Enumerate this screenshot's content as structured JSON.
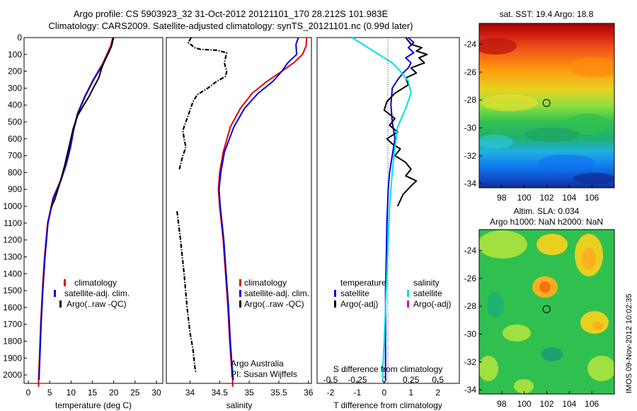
{
  "header": {
    "line1": "Argo profile: CS 5903923_32 31-Oct-2012 20121101_170 28.212S 101.983E",
    "line2": "Climatology: CARS2009. Satellite-adjusted climatology: synTS_20121101.nc (0.99d later)"
  },
  "colors": {
    "climatology": "#e00000",
    "satellite": "#0000e0",
    "argo": "#000000",
    "sal_satellite": "#00e0e0",
    "sal_argo": "#e000e0"
  },
  "depth_axis": {
    "range": [
      0,
      2050
    ],
    "ticks": [
      "0",
      "100",
      "200",
      "300",
      "400",
      "500",
      "600",
      "700",
      "800",
      "900",
      "1000",
      "1100",
      "1200",
      "1300",
      "1400",
      "1500",
      "1600",
      "1700",
      "1800",
      "1900",
      "2000"
    ]
  },
  "chart_data": [
    {
      "type": "line",
      "id": "temperature",
      "xlabel": "temperature (deg C)",
      "xlim": [
        -1,
        31.5
      ],
      "xticks": [
        "0",
        "5",
        "10",
        "15",
        "20",
        "25",
        "30"
      ],
      "ylim": [
        2050,
        0
      ],
      "legend": [
        "climatology",
        "satellite-adj. clim.",
        "Argo(..raw -QC)"
      ],
      "series": [
        {
          "name": "climatology",
          "style": "solid",
          "color": "climatology",
          "x": [
            19.8,
            19.3,
            17.5,
            15.2,
            13.2,
            11.5,
            10.5,
            9.8,
            8.8,
            7.5,
            5.8,
            4.5,
            3.8,
            3.3,
            2.9,
            2.6,
            2.4,
            2.4
          ],
          "y": [
            0,
            50,
            150,
            250,
            350,
            450,
            550,
            650,
            750,
            850,
            950,
            1100,
            1300,
            1500,
            1700,
            1900,
            2030,
            2070
          ]
        },
        {
          "name": "satellite-adj. clim.",
          "style": "solid",
          "color": "satellite",
          "x": [
            20.0,
            19.5,
            17.7,
            15.3,
            13.3,
            11.6,
            10.6,
            9.9,
            8.9,
            7.6,
            5.9,
            4.6,
            3.9,
            3.4,
            3.0,
            2.7,
            2.5
          ],
          "y": [
            0,
            50,
            150,
            250,
            350,
            450,
            550,
            650,
            750,
            850,
            950,
            1100,
            1300,
            1500,
            1700,
            1900,
            2030
          ]
        },
        {
          "name": "Argo(..raw -QC)",
          "style": "solid",
          "color": "argo",
          "x": [
            19.9,
            19.6,
            19.0,
            18.0,
            17.2,
            16.5,
            15.2,
            14.2,
            13.0,
            11.6,
            10.5,
            9.6,
            8.5,
            7.3,
            6.2,
            5.3
          ],
          "y": [
            0,
            40,
            80,
            130,
            180,
            240,
            300,
            350,
            400,
            460,
            540,
            640,
            760,
            870,
            960,
            1010
          ]
        }
      ]
    },
    {
      "type": "line",
      "id": "salinity",
      "xlabel": "salinity",
      "xlim": [
        33.6,
        36.05
      ],
      "xticks": [
        "34",
        "34.5",
        "35",
        "35.5",
        "36"
      ],
      "ylim": [
        2050,
        0
      ],
      "legend": [
        "climatology",
        "satellite-adj. clim.",
        "Argo(..raw -QC)"
      ],
      "annotation": [
        "Argo Australia",
        "PI: Susan Wijffels"
      ],
      "series": [
        {
          "name": "climatology",
          "style": "solid",
          "color": "climatology",
          "x": [
            35.97,
            35.96,
            35.9,
            35.75,
            35.55,
            35.3,
            35.05,
            34.85,
            34.68,
            34.56,
            34.5,
            34.48,
            34.5,
            34.53,
            34.56,
            34.6,
            34.64,
            34.67,
            34.7,
            34.72,
            34.72
          ],
          "y": [
            0,
            50,
            100,
            150,
            200,
            260,
            330,
            420,
            530,
            680,
            800,
            900,
            1000,
            1100,
            1200,
            1400,
            1600,
            1800,
            1950,
            2030,
            2070
          ]
        },
        {
          "name": "satellite-adj. clim.",
          "style": "solid",
          "color": "satellite",
          "x": [
            35.83,
            35.79,
            35.8,
            35.65,
            35.55,
            35.4,
            35.15,
            34.92,
            34.74,
            34.58,
            34.52,
            34.49,
            34.51,
            34.54,
            34.57,
            34.61,
            34.65,
            34.68,
            34.71,
            34.73
          ],
          "y": [
            0,
            40,
            100,
            150,
            200,
            260,
            330,
            420,
            530,
            680,
            800,
            900,
            1000,
            1100,
            1200,
            1400,
            1600,
            1800,
            1950,
            2030
          ]
        },
        {
          "name": "Argo(..raw -QC)",
          "style": "dashdot",
          "color": "argo",
          "x": [
            34.02,
            33.97,
            34.08,
            34.18,
            34.45,
            34.62,
            34.58,
            34.62,
            34.6,
            34.45,
            34.3,
            34.12,
            34.05,
            33.98,
            33.93,
            33.88,
            33.9,
            33.93,
            33.88,
            33.82
          ],
          "y": [
            0,
            30,
            60,
            70,
            75,
            90,
            150,
            200,
            230,
            260,
            300,
            340,
            380,
            450,
            500,
            550,
            600,
            650,
            700,
            780
          ]
        },
        {
          "name": "Argo(..raw -QC) deep",
          "style": "dashdot",
          "color": "argo",
          "x": [
            33.78,
            33.84,
            33.9,
            33.95,
            34.0,
            34.05,
            34.08,
            34.1
          ],
          "y": [
            1030,
            1200,
            1400,
            1600,
            1750,
            1850,
            1950,
            1990
          ]
        }
      ]
    },
    {
      "type": "line",
      "id": "difference",
      "xlabel": "T difference from climatology",
      "x2label": "S difference from climatology",
      "xlim": [
        -2.5,
        2.8
      ],
      "xticks": [
        "-2",
        "-1",
        "0",
        "1",
        "2"
      ],
      "x2ticks": [
        "-0.5",
        "-0.25",
        "0",
        "0.25",
        "0.5"
      ],
      "ylim": [
        2050,
        0
      ],
      "legend_titles": [
        "temperature",
        "salinity"
      ],
      "legend": [
        "satellite",
        "Argo(-adj)",
        "satellite",
        "Argo(-adj)"
      ],
      "series": [
        {
          "name": "satellite",
          "group": "temperature",
          "style": "solid",
          "color": "satellite",
          "x": [
            0.9,
            1.1,
            0.9,
            1.1,
            0.8,
            1.0,
            0.9,
            0.7,
            0.5,
            0.3,
            0.25,
            0.3,
            0.4,
            0.3,
            0.2,
            0.15,
            0.1,
            0.08,
            0.05,
            0.05,
            0.05
          ],
          "y": [
            0,
            30,
            60,
            90,
            120,
            150,
            180,
            210,
            250,
            300,
            400,
            500,
            600,
            700,
            800,
            900,
            1100,
            1300,
            1500,
            1800,
            2030
          ]
        },
        {
          "name": "Argo(-adj)",
          "group": "temperature",
          "style": "solid",
          "color": "argo",
          "x": [
            0.8,
            1.0,
            1.4,
            1.2,
            1.6,
            1.3,
            1.5,
            1.0,
            1.2,
            0.8,
            0.9,
            0.4,
            0.1,
            0.0,
            0.4,
            0.2,
            0.5,
            0.1,
            0.3,
            0.6,
            0.4,
            0.8,
            1.0,
            0.8,
            1.2,
            1.0,
            0.7,
            0.5
          ],
          "y": [
            0,
            40,
            60,
            80,
            100,
            120,
            150,
            180,
            210,
            240,
            280,
            330,
            380,
            430,
            480,
            520,
            560,
            600,
            630,
            660,
            700,
            740,
            780,
            820,
            850,
            880,
            930,
            1000
          ]
        },
        {
          "name": "satellite",
          "group": "salinity",
          "style": "solid",
          "color": "sal_satellite",
          "x": [
            -1.2,
            -0.9,
            -0.6,
            -0.2,
            0.3,
            0.6,
            0.9,
            1.0,
            0.8,
            0.5,
            0.4,
            0.3,
            0.2,
            0.15,
            0.1,
            0.05,
            0.0,
            -0.05,
            -0.05
          ],
          "y": [
            0,
            30,
            60,
            100,
            150,
            200,
            260,
            330,
            420,
            530,
            650,
            800,
            1000,
            1200,
            1400,
            1600,
            1800,
            1950,
            2030
          ]
        }
      ]
    },
    {
      "type": "heatmap",
      "id": "sst-map",
      "title": "sat. SST: 19.4  Argo: 18.8",
      "xlim": [
        96,
        108
      ],
      "ylim": [
        -34.3,
        -22.5
      ],
      "xticks": [
        "98",
        "100",
        "102",
        "104",
        "106"
      ],
      "yticks": [
        "-24",
        "-26",
        "-28",
        "-30",
        "-32",
        "-34"
      ],
      "marker": {
        "lon": 101.983,
        "lat": -28.212
      }
    },
    {
      "type": "heatmap",
      "id": "sla-map",
      "title": "Altim. SLA: 0.034",
      "subtitle": "Argo h1000: NaN h2000: NaN",
      "xlim": [
        96,
        108
      ],
      "ylim": [
        -34.3,
        -22.5
      ],
      "xticks": [
        "98",
        "100",
        "102",
        "104",
        "106"
      ],
      "yticks": [
        "-24",
        "-26",
        "-28",
        "-30",
        "-32",
        "-34"
      ],
      "marker": {
        "lon": 101.983,
        "lat": -28.212
      }
    }
  ],
  "footer": {
    "stamp": "IMOS 09-Nov-2012 10:02:35"
  }
}
